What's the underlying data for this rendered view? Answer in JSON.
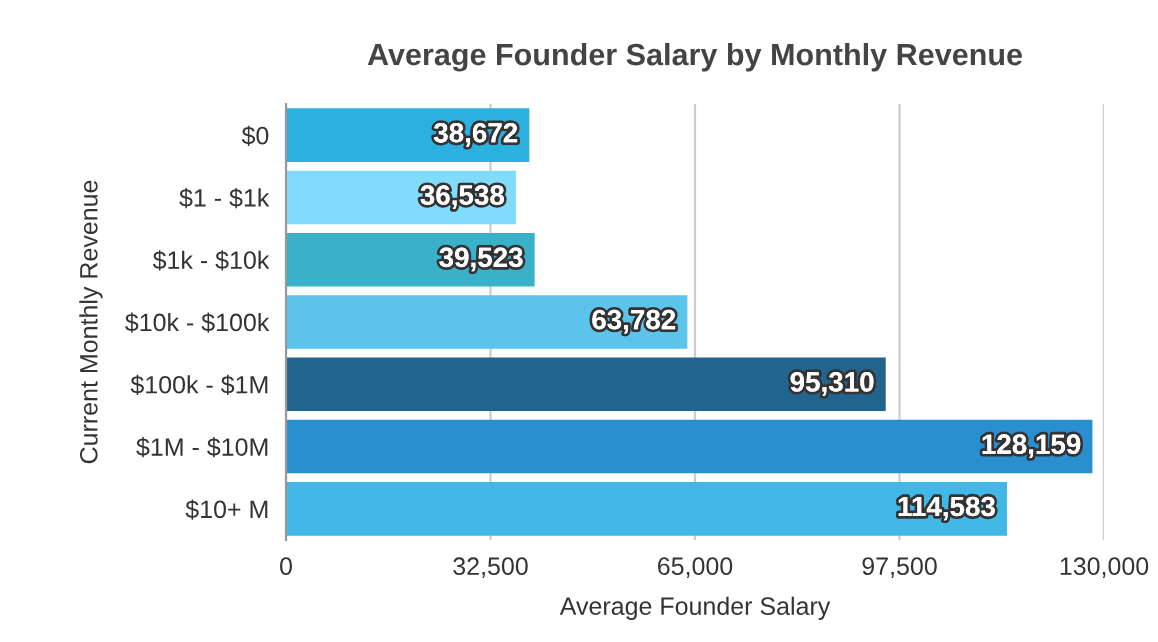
{
  "chart_data": {
    "type": "bar",
    "orientation": "horizontal",
    "title": "Average Founder Salary by Monthly Revenue",
    "xlabel": "Average Founder Salary",
    "ylabel": "Current Monthly Revenue",
    "categories": [
      "$0",
      "$1 - $1k",
      "$1k - $10k",
      "$10k - $100k",
      "$100k - $1M",
      "$1M - $10M",
      "$10+ M"
    ],
    "values": [
      38672,
      36538,
      39523,
      63782,
      95310,
      128159,
      114583
    ],
    "colors": [
      "#2cb0e0",
      "#80dcfa",
      "#39b1c9",
      "#5cc3ea",
      "#23648f",
      "#2a8fcf",
      "#41b8e5"
    ],
    "xlim": [
      0,
      130000
    ],
    "xticks": [
      0,
      {
        "value": 32500,
        "label": "32,500"
      },
      {
        "value": 65000,
        "label": "65,000"
      },
      {
        "value": 97500,
        "label": "97,500"
      },
      {
        "value": 130000,
        "label": "130,000"
      }
    ],
    "value_labels": [
      "38,672",
      "36,538",
      "39,523",
      "63,782",
      "95,310",
      "128,159",
      "114,583"
    ],
    "grid": "x"
  }
}
